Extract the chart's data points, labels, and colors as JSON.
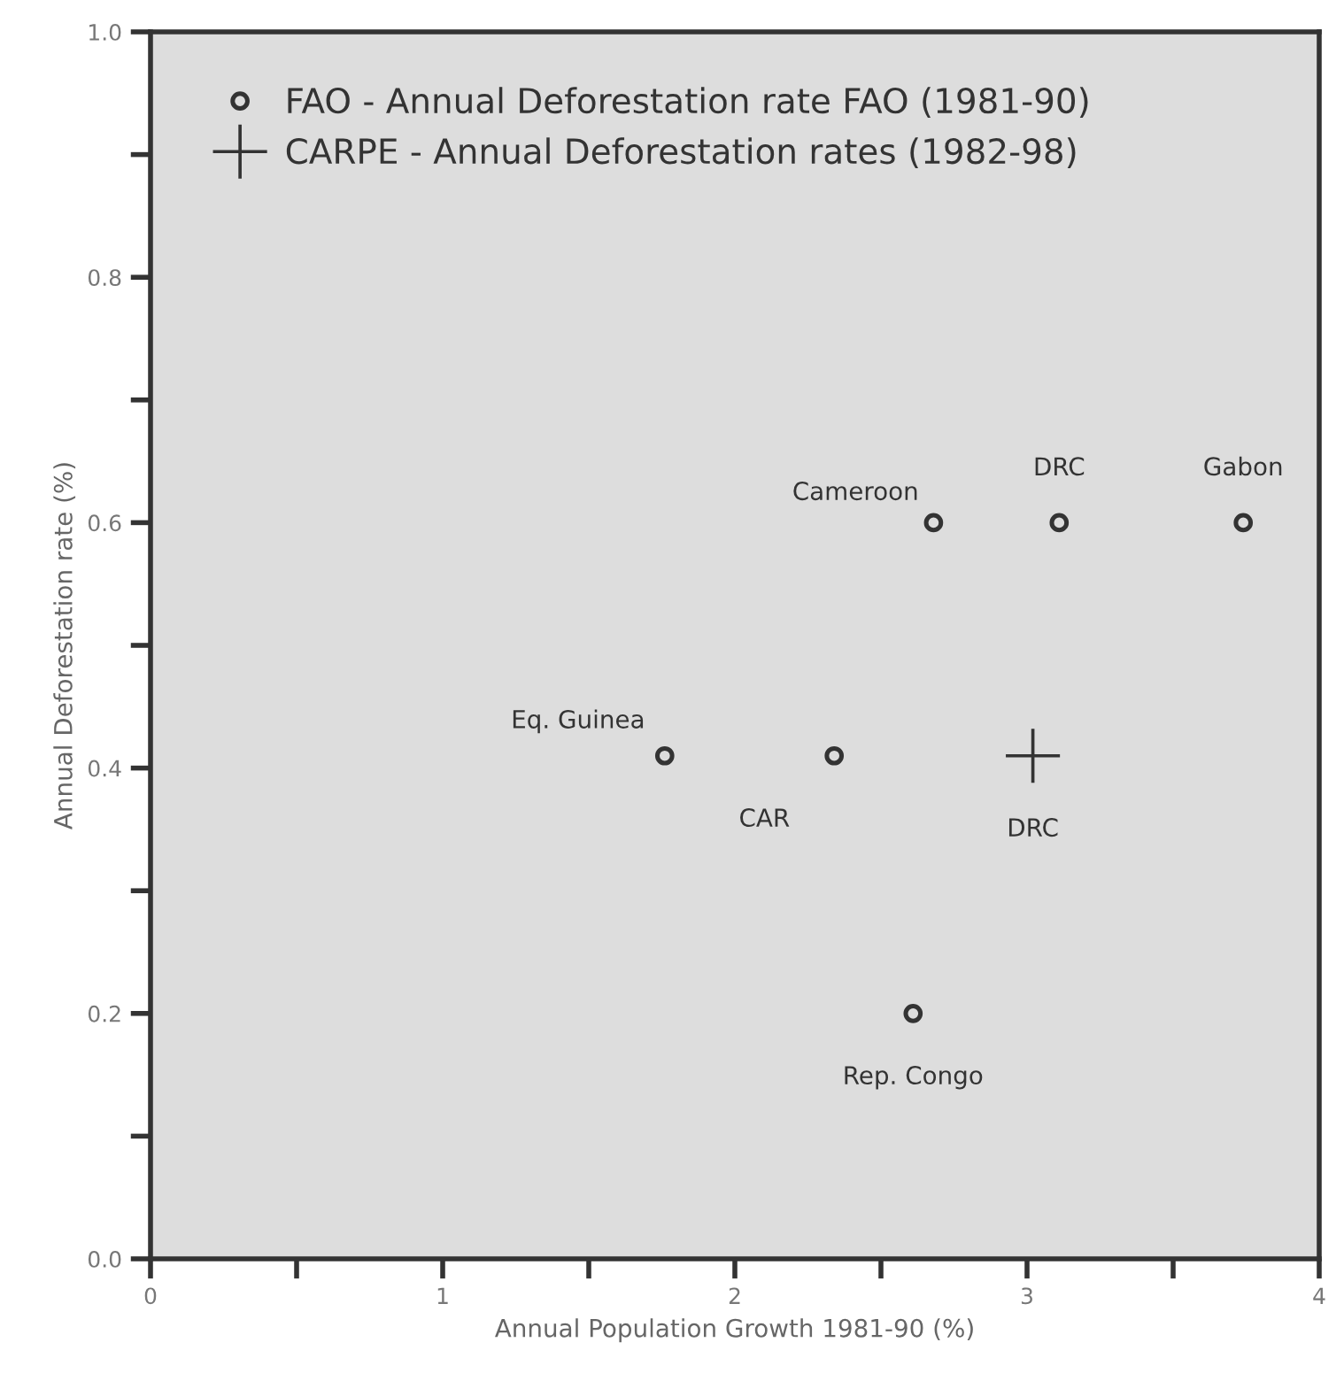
{
  "chart_data": {
    "type": "scatter",
    "xlabel": "Annual Population Growth 1981-90 (%)",
    "ylabel": "Annual Deforestation rate (%)",
    "series": [
      {
        "name": "FAO - Annual Deforestation rate FAO (1981-90)",
        "color": "#333333",
        "marker": "circle",
        "x": [
          2.68,
          3.11,
          3.74,
          1.76,
          2.34,
          2.61
        ],
        "values": [
          0.6,
          0.6,
          0.6,
          0.41,
          0.41,
          0.2
        ]
      },
      {
        "name": "CARPE - Annual Deforestation rates (1982-98)",
        "color": "#333333",
        "marker": "cross",
        "x": [
          3.02
        ],
        "values": [
          0.41
        ]
      }
    ],
    "annotations": [
      {
        "text": "Cameroon",
        "x": 2.68,
        "y": 0.6
      },
      {
        "text": "DRC",
        "x": 3.11,
        "y": 0.6
      },
      {
        "text": "Gabon",
        "x": 3.74,
        "y": 0.6
      },
      {
        "text": "Eq. Guinea",
        "x": 1.76,
        "y": 0.41
      },
      {
        "text": "CAR",
        "x": 2.34,
        "y": 0.41
      },
      {
        "text": "DRC",
        "x": 3.02,
        "y": 0.41
      },
      {
        "text": "Rep. Congo",
        "x": 2.61,
        "y": 0.2
      }
    ],
    "xlim": [
      0,
      4
    ],
    "ylim": [
      0,
      1
    ],
    "xticks": [
      0,
      {
        "value": 0.5,
        "label": null
      },
      1,
      {
        "value": 1.5,
        "label": null
      },
      2,
      {
        "value": 2.5,
        "label": null
      },
      3,
      {
        "value": 3.5,
        "label": null
      },
      4
    ],
    "yticks": [
      {
        "value": 0,
        "label": "0.0"
      },
      {
        "value": 0.1,
        "label": null
      },
      0.2,
      {
        "value": 0.3,
        "label": null
      },
      0.4,
      {
        "value": 0.5,
        "label": null
      },
      0.6,
      {
        "value": 0.7,
        "label": null
      },
      0.8,
      {
        "value": 0.9,
        "label": null
      },
      {
        "value": 1,
        "label": "1.0"
      }
    ],
    "grid": false,
    "legend": "top left"
  }
}
